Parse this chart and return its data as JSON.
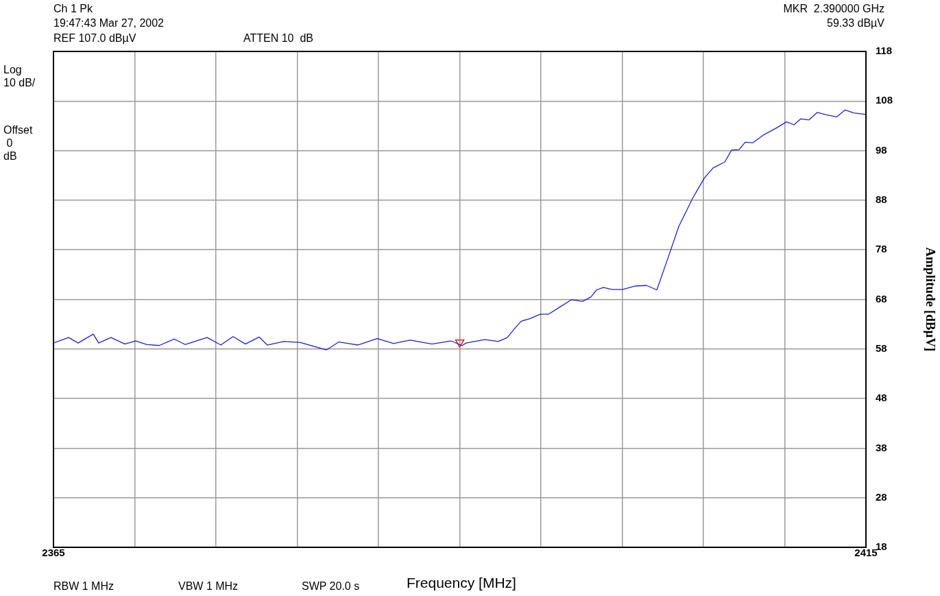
{
  "chart_data": {
    "type": "line",
    "title": "Ch 1 Pk",
    "subtitle": "19:47:43 Mar 27, 2002",
    "xlabel": "Frequency [MHz]",
    "ylabel": "Amplitude [dBµV]",
    "annotations": [
      "REF 107.0 dBµV",
      "ATTEN 10  dB",
      "MKR  2.390000 GHz",
      "59.33 dBµV",
      "Log\n10 dB/",
      "Offset\n 0\ndB",
      "RBW 1 MHz",
      "VBW 1 MHz",
      "SWP 20.0 s"
    ],
    "xlim": [
      2365,
      2415
    ],
    "xticks": [
      2365,
      {
        "value": 2370,
        "label": null
      },
      {
        "value": 2375,
        "label": null
      },
      {
        "value": 2380,
        "label": null
      },
      {
        "value": 2385,
        "label": null
      },
      {
        "value": 2390,
        "label": null
      },
      {
        "value": 2395,
        "label": null
      },
      {
        "value": 2400,
        "label": null
      },
      {
        "value": 2405,
        "label": null
      },
      {
        "value": 2410,
        "label": null
      },
      2415
    ],
    "ylim": [
      18,
      118
    ],
    "yticks": [
      18,
      28,
      38,
      48,
      58,
      68,
      78,
      88,
      98,
      108,
      118
    ],
    "grid": true,
    "legend": false,
    "series": [
      {
        "color": "#2020d0",
        "marker": "none",
        "line_style": "solid",
        "x": [
          2365,
          2365.93,
          2366.52,
          2367.45,
          2367.78,
          2368.54,
          2369.39,
          2370.06,
          2370.74,
          2371.5,
          2372.43,
          2373.1,
          2374.45,
          2375.3,
          2376.05,
          2376.81,
          2377.66,
          2378.16,
          2379.18,
          2380.19,
          2381.79,
          2382.55,
          2383.73,
          2384.92,
          2385.93,
          2386.94,
          2388.29,
          2389.47,
          2390.15,
          2390.4,
          2391.54,
          2392.38,
          2392.93,
          2393.35,
          2393.78,
          2394.32,
          2394.96,
          2395.46,
          2396.18,
          2396.86,
          2397.57,
          2398.08,
          2398.42,
          2398.84,
          2399.39,
          2400.02,
          2400.82,
          2401.5,
          2402.13,
          2402.76,
          2403.48,
          2404.32,
          2405.04,
          2405.59,
          2406.31,
          2406.73,
          2407.19,
          2407.57,
          2408.04,
          2408.67,
          2409.51,
          2410.11,
          2410.57,
          2410.99,
          2411.5,
          2412.0,
          2412.47,
          2413.19,
          2413.73,
          2414.24,
          2415
        ],
        "values": [
          59.2,
          60.3,
          59.2,
          61.0,
          59.2,
          60.3,
          59.0,
          59.6,
          58.9,
          58.7,
          60.0,
          58.9,
          60.3,
          58.8,
          60.5,
          59.0,
          60.4,
          58.8,
          59.5,
          59.3,
          57.8,
          59.4,
          58.8,
          60.1,
          59.1,
          59.8,
          59.0,
          59.6,
          58.7,
          59.2,
          59.9,
          59.5,
          60.3,
          62.0,
          63.6,
          64.1,
          65.0,
          65.0,
          66.5,
          67.9,
          67.6,
          68.5,
          69.9,
          70.4,
          70.0,
          70.0,
          70.7,
          70.8,
          69.9,
          75.8,
          82.7,
          88.3,
          92.4,
          94.5,
          95.7,
          98.1,
          98.2,
          99.7,
          99.6,
          101.1,
          102.6,
          103.8,
          103.2,
          104.4,
          104.2,
          105.7,
          105.3,
          104.8,
          106.2,
          105.6,
          105.3
        ]
      },
      {
        "type": "scatter",
        "color": "#e02020",
        "marker": "triangle",
        "x": [
          2390
        ],
        "values": [
          59.33
        ]
      }
    ]
  }
}
